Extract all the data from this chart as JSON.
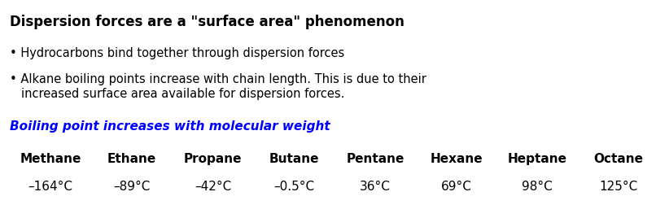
{
  "background_color": "#ffffff",
  "title_text": "Dispersion forces are a \"surface area\" phenomenon",
  "title_fontsize": 12,
  "bullet1": "• Hydrocarbons bind together through dispersion forces",
  "bullet2_line1": "• Alkane boiling points increase with chain length. This is due to their",
  "bullet2_line2": "   increased surface area available for dispersion forces.",
  "bullet_fontsize": 10.5,
  "subtitle": "Boiling point increases with molecular weight",
  "subtitle_color": "#0000ff",
  "subtitle_fontsize": 11,
  "compounds": [
    "Methane",
    "Ethane",
    "Propane",
    "Butane",
    "Pentane",
    "Hexane",
    "Heptane",
    "Octane"
  ],
  "boiling_points": [
    "–164°C",
    "–89°C",
    "–42°C",
    "–0.5°C",
    "36°C",
    "69°C",
    "98°C",
    "125°C"
  ],
  "table_fontsize": 11,
  "bp_fontsize": 11,
  "fig_width": 8.22,
  "fig_height": 2.68,
  "dpi": 100
}
